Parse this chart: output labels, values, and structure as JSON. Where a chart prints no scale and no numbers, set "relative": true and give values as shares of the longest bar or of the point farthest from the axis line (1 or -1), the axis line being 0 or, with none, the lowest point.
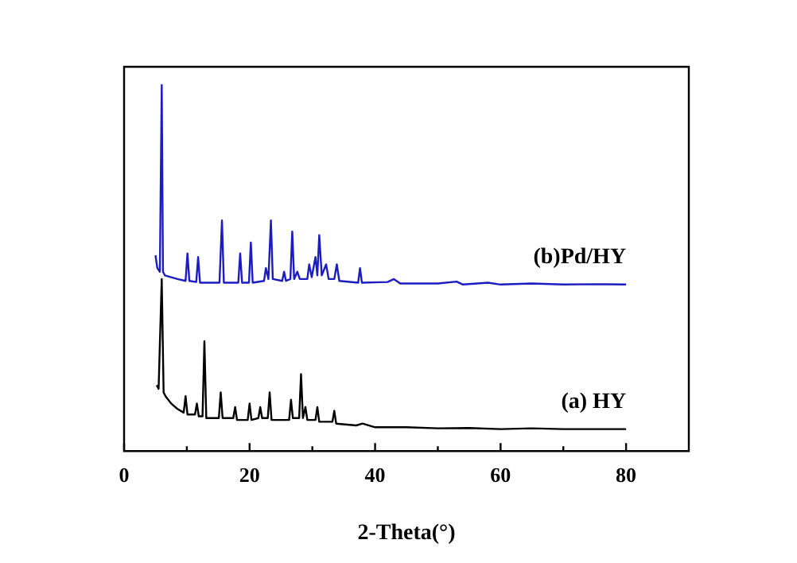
{
  "chart_data": {
    "type": "line",
    "xlabel": "2-Theta(°)",
    "relative": true,
    "xlim": [
      0,
      90
    ],
    "xticks": [
      0,
      {
        "value": 10,
        "label": null
      },
      20,
      {
        "value": 30,
        "label": null
      },
      40,
      {
        "value": 50,
        "label": null
      },
      60,
      {
        "value": 70,
        "label": null
      },
      80
    ],
    "marker": "none",
    "line_style": "solid",
    "legend": false,
    "grid": false,
    "tick_labels": "x",
    "series": [
      {
        "name": "(b)Pd/HY",
        "color": "#1c1cc0",
        "x": [
          5.0,
          5.3,
          5.7,
          6.0,
          6.2,
          6.5,
          7.5,
          8.5,
          9.8,
          10.1,
          10.4,
          11.5,
          11.8,
          12.1,
          15.2,
          15.6,
          15.9,
          18.2,
          18.5,
          18.8,
          19.9,
          20.2,
          20.5,
          22.3,
          22.6,
          23.0,
          23.4,
          23.7,
          25.2,
          25.5,
          25.8,
          26.5,
          26.8,
          27.1,
          27.6,
          28.0,
          29.2,
          29.5,
          29.9,
          30.5,
          30.8,
          31.1,
          31.5,
          32.2,
          32.6,
          33.5,
          33.9,
          34.3,
          37.3,
          37.6,
          37.9,
          42,
          43,
          44,
          50,
          53,
          54,
          58,
          60,
          65,
          70,
          75,
          80
        ],
        "values": [
          0.535,
          0.5,
          0.49,
          1.0,
          0.49,
          0.48,
          0.475,
          0.47,
          0.465,
          0.54,
          0.465,
          0.462,
          0.53,
          0.46,
          0.46,
          0.63,
          0.46,
          0.46,
          0.54,
          0.46,
          0.46,
          0.57,
          0.46,
          0.465,
          0.5,
          0.47,
          0.63,
          0.47,
          0.465,
          0.49,
          0.465,
          0.47,
          0.6,
          0.47,
          0.49,
          0.47,
          0.47,
          0.51,
          0.475,
          0.53,
          0.48,
          0.59,
          0.48,
          0.51,
          0.47,
          0.47,
          0.51,
          0.465,
          0.46,
          0.5,
          0.46,
          0.462,
          0.47,
          0.458,
          0.458,
          0.463,
          0.455,
          0.46,
          0.455,
          0.458,
          0.455,
          0.456,
          0.455
        ]
      },
      {
        "name": "(a) HY",
        "color": "#000000",
        "x": [
          5.2,
          5.5,
          6.0,
          6.3,
          6.6,
          7.5,
          8.5,
          9.5,
          9.8,
          10.1,
          11.3,
          11.6,
          11.9,
          12.5,
          12.8,
          13.1,
          15.1,
          15.4,
          15.7,
          17.4,
          17.7,
          18.0,
          19.7,
          20.0,
          20.3,
          21.4,
          21.7,
          22.0,
          22.9,
          23.2,
          23.5,
          26.3,
          26.6,
          26.9,
          27.9,
          28.2,
          28.5,
          28.9,
          29.2,
          30.5,
          30.8,
          31.1,
          33.2,
          33.5,
          33.8,
          37,
          38,
          40,
          45,
          50,
          55,
          60,
          65,
          70,
          80
        ],
        "values": [
          0.18,
          0.17,
          0.47,
          0.16,
          0.15,
          0.13,
          0.115,
          0.105,
          0.15,
          0.1,
          0.1,
          0.13,
          0.095,
          0.095,
          0.3,
          0.09,
          0.09,
          0.16,
          0.09,
          0.09,
          0.12,
          0.085,
          0.085,
          0.13,
          0.085,
          0.09,
          0.12,
          0.09,
          0.09,
          0.16,
          0.085,
          0.085,
          0.14,
          0.09,
          0.09,
          0.21,
          0.09,
          0.12,
          0.085,
          0.085,
          0.12,
          0.08,
          0.08,
          0.11,
          0.075,
          0.07,
          0.075,
          0.065,
          0.065,
          0.062,
          0.063,
          0.06,
          0.062,
          0.06,
          0.06
        ]
      }
    ]
  }
}
